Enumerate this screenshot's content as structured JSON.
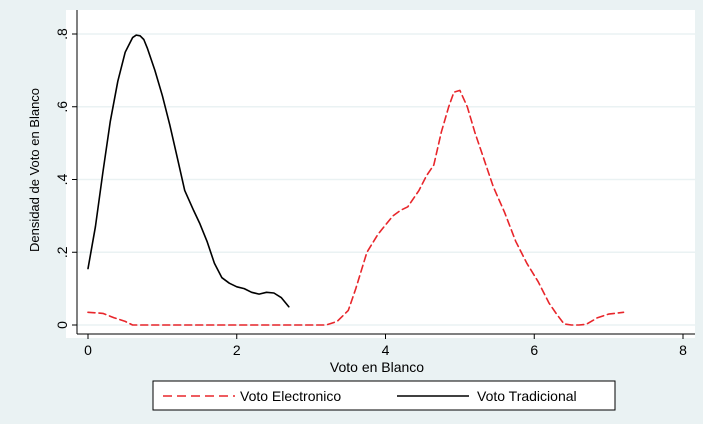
{
  "chart_data": {
    "type": "line",
    "title": "",
    "xlabel": "Voto en Blanco",
    "ylabel": "Densidad de Voto en Blanco",
    "xlim": [
      0,
      8
    ],
    "ylim": [
      0,
      0.8
    ],
    "x_ticks": [
      0,
      2,
      4,
      6,
      8
    ],
    "x_tick_labels": [
      "0",
      "2",
      "4",
      "6",
      "8"
    ],
    "y_ticks": [
      0,
      0.2,
      0.4,
      0.6,
      0.8
    ],
    "y_tick_labels": [
      "0",
      ".2",
      ".4",
      ".6",
      ".8"
    ],
    "grid": true,
    "legend_position": "bottom",
    "colors": {
      "outer_background": "#eaf2f3",
      "plot_background": "#ffffff",
      "grid": "#eaf2f3",
      "electronico": "#e8262b",
      "tradicional": "#000000"
    },
    "series": [
      {
        "name": "Voto Electronico",
        "color": "#e8262b",
        "dash": "dashed",
        "x": [
          0,
          0.2,
          0.35,
          0.5,
          0.6,
          1.0,
          2.0,
          3.0,
          3.2,
          3.35,
          3.5,
          3.6,
          3.75,
          3.9,
          4.0,
          4.1,
          4.2,
          4.3,
          4.45,
          4.55,
          4.65,
          4.75,
          4.85,
          4.92,
          5.0,
          5.1,
          5.2,
          5.3,
          5.45,
          5.6,
          5.75,
          5.9,
          6.05,
          6.2,
          6.3,
          6.4,
          6.5,
          6.6,
          6.7,
          6.85,
          7.0,
          7.2
        ],
        "y": [
          0.035,
          0.032,
          0.02,
          0.01,
          0,
          0,
          0,
          0,
          0,
          0.01,
          0.04,
          0.1,
          0.2,
          0.25,
          0.275,
          0.3,
          0.315,
          0.325,
          0.37,
          0.41,
          0.44,
          0.53,
          0.6,
          0.64,
          0.645,
          0.6,
          0.53,
          0.47,
          0.38,
          0.31,
          0.23,
          0.17,
          0.12,
          0.06,
          0.03,
          0.003,
          0,
          0,
          0.002,
          0.02,
          0.03,
          0.035
        ]
      },
      {
        "name": "Voto Tradicional",
        "color": "#000000",
        "dash": "solid",
        "x": [
          0,
          0.1,
          0.2,
          0.3,
          0.4,
          0.5,
          0.6,
          0.65,
          0.7,
          0.75,
          0.8,
          0.9,
          1.0,
          1.1,
          1.2,
          1.3,
          1.42,
          1.5,
          1.6,
          1.7,
          1.8,
          1.9,
          2.0,
          2.1,
          2.2,
          2.3,
          2.4,
          2.5,
          2.6,
          2.7
        ],
        "y": [
          0.155,
          0.27,
          0.42,
          0.56,
          0.67,
          0.75,
          0.79,
          0.797,
          0.795,
          0.785,
          0.76,
          0.7,
          0.63,
          0.55,
          0.46,
          0.37,
          0.315,
          0.28,
          0.23,
          0.17,
          0.13,
          0.115,
          0.105,
          0.1,
          0.09,
          0.085,
          0.09,
          0.088,
          0.075,
          0.05
        ]
      }
    ]
  }
}
